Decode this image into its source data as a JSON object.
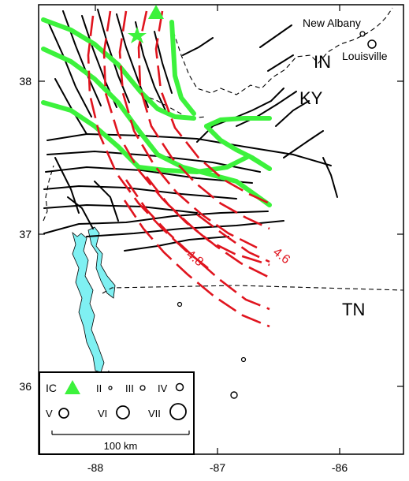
{
  "map": {
    "axes": {
      "y_ticks": [
        "38",
        "37",
        "36"
      ],
      "x_ticks": [
        "-88",
        "-87",
        "-86"
      ]
    },
    "places": {
      "city1": "New Albany",
      "city2": "Louisville",
      "state_in": "IN",
      "state_ky": "KY",
      "state_tn": "TN"
    },
    "contours": {
      "label_a": "4.8",
      "label_b": "4.6"
    },
    "legend": {
      "ic": "IC",
      "ii": "II",
      "iii": "III",
      "iv": "IV",
      "v": "V",
      "vi": "VI",
      "vii": "VII",
      "scale": "100 km"
    },
    "colors": {
      "fault": "#000000",
      "contour": "#e0141e",
      "green": "#3cf23c",
      "water": "#7ff0f2",
      "frame": "#000000"
    }
  }
}
